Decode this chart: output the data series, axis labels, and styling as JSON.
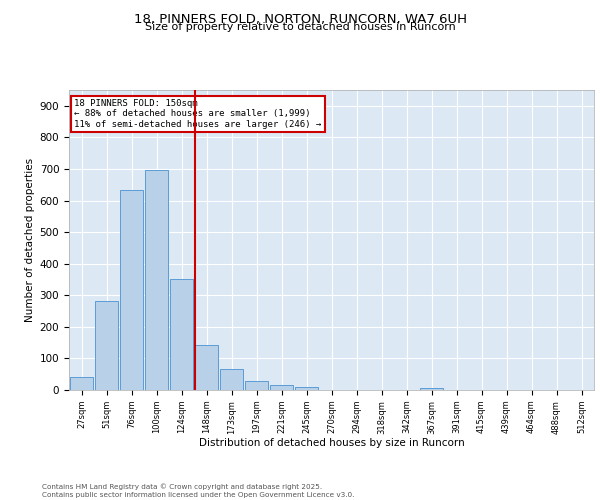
{
  "title1": "18, PINNERS FOLD, NORTON, RUNCORN, WA7 6UH",
  "title2": "Size of property relative to detached houses in Runcorn",
  "xlabel": "Distribution of detached houses by size in Runcorn",
  "ylabel": "Number of detached properties",
  "bar_labels": [
    "27sqm",
    "51sqm",
    "76sqm",
    "100sqm",
    "124sqm",
    "148sqm",
    "173sqm",
    "197sqm",
    "221sqm",
    "245sqm",
    "270sqm",
    "294sqm",
    "318sqm",
    "342sqm",
    "367sqm",
    "391sqm",
    "415sqm",
    "439sqm",
    "464sqm",
    "488sqm",
    "512sqm"
  ],
  "bar_values": [
    40,
    283,
    632,
    697,
    352,
    143,
    65,
    28,
    16,
    11,
    0,
    0,
    0,
    0,
    6,
    0,
    0,
    0,
    0,
    0,
    0
  ],
  "bar_color": "#b8d0e8",
  "bar_edge_color": "#5b9bd5",
  "background_color": "#dce9f5",
  "grid_color": "#ffffff",
  "vline_color": "#cc0000",
  "annotation_text": "18 PINNERS FOLD: 150sqm\n← 88% of detached houses are smaller (1,999)\n11% of semi-detached houses are larger (246) →",
  "annotation_box_color": "#ffffff",
  "annotation_box_edge": "#cc0000",
  "footer_text": "Contains HM Land Registry data © Crown copyright and database right 2025.\nContains public sector information licensed under the Open Government Licence v3.0.",
  "ylim": [
    0,
    950
  ],
  "yticks": [
    0,
    100,
    200,
    300,
    400,
    500,
    600,
    700,
    800,
    900
  ]
}
